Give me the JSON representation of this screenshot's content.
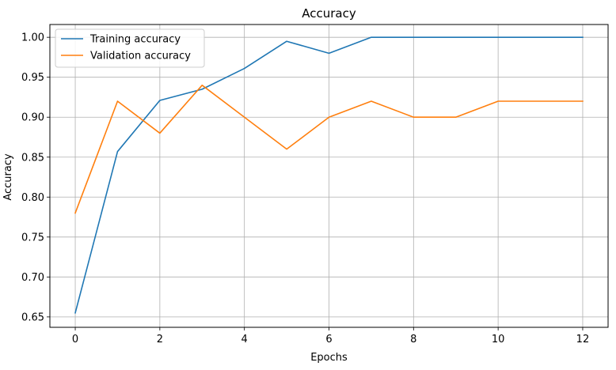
{
  "chart_data": {
    "type": "line",
    "title": "Accuracy",
    "xlabel": "Epochs",
    "ylabel": "Accuracy",
    "xlim": [
      -0.6,
      12.6
    ],
    "ylim": [
      0.637,
      1.016
    ],
    "xticks": [
      0,
      2,
      4,
      6,
      8,
      10,
      12
    ],
    "yticks": [
      0.65,
      0.7,
      0.75,
      0.8,
      0.85,
      0.9,
      0.95,
      1.0
    ],
    "grid": true,
    "legend_position": "top-left",
    "series": [
      {
        "name": "Training accuracy",
        "color": "#1f77b4",
        "x": [
          0,
          1,
          2,
          3,
          4,
          5,
          6,
          7,
          8,
          9,
          10,
          11,
          12
        ],
        "values": [
          0.655,
          0.857,
          0.921,
          0.935,
          0.961,
          0.995,
          0.98,
          1.0,
          1.0,
          1.0,
          1.0,
          1.0,
          1.0
        ]
      },
      {
        "name": "Validation accuracy",
        "color": "#ff7f0e",
        "x": [
          0,
          1,
          2,
          3,
          4,
          5,
          6,
          7,
          8,
          9,
          10,
          11,
          12
        ],
        "values": [
          0.78,
          0.92,
          0.88,
          0.94,
          0.9,
          0.86,
          0.9,
          0.92,
          0.9,
          0.9,
          0.92,
          0.92,
          0.92
        ]
      }
    ]
  }
}
